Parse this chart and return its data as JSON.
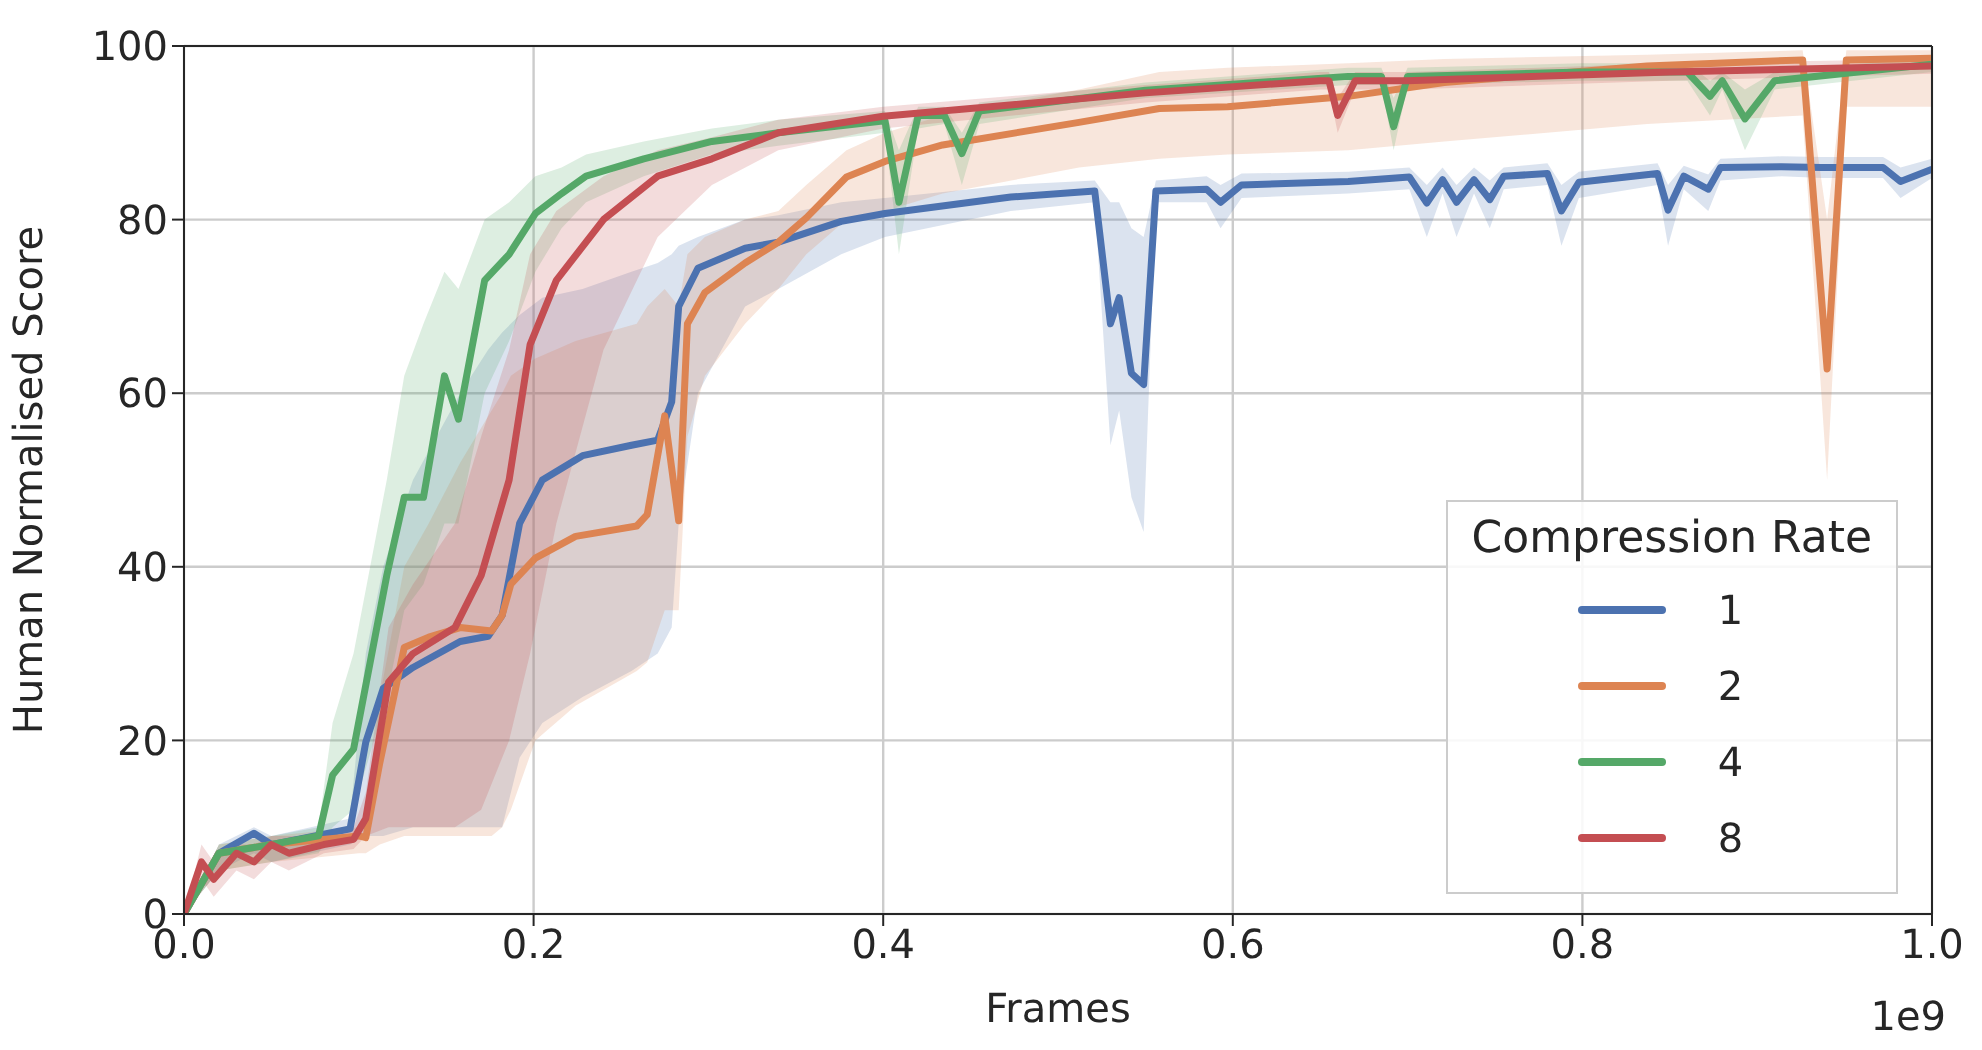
{
  "chart_data": {
    "type": "line",
    "xlabel": "Frames",
    "ylabel": "Human Normalised Score",
    "legend_title": "Compression Rate",
    "legend": "bottom right",
    "grid": true,
    "xlim": [
      0,
      1
    ],
    "ylim": [
      0,
      100
    ],
    "xticks": [
      {
        "value": 0,
        "label": "0.0"
      },
      {
        "value": 0.2,
        "label": "0.2"
      },
      {
        "value": 0.4,
        "label": "0.4"
      },
      {
        "value": 0.6,
        "label": "0.6"
      },
      {
        "value": 0.8,
        "label": "0.8"
      },
      {
        "value": 1,
        "label": "1.0"
      }
    ],
    "yticks": [
      0,
      20,
      40,
      60,
      80,
      100
    ],
    "annotations": [
      "1e9"
    ],
    "series": [
      {
        "name": "1",
        "color": "#4c72b0",
        "x": [
          0,
          0.02,
          0.04,
          0.05,
          0.095,
          0.104,
          0.114,
          0.131,
          0.158,
          0.174,
          0.182,
          0.192,
          0.205,
          0.228,
          0.256,
          0.271,
          0.279,
          0.283,
          0.294,
          0.321,
          0.34,
          0.376,
          0.401,
          0.473,
          0.521,
          0.53,
          0.535,
          0.542,
          0.549,
          0.556,
          0.585,
          0.593,
          0.605,
          0.666,
          0.701,
          0.711,
          0.72,
          0.728,
          0.738,
          0.747,
          0.755,
          0.78,
          0.788,
          0.798,
          0.843,
          0.849,
          0.858,
          0.872,
          0.879,
          0.914,
          0.937,
          0.972,
          0.982,
          1.0
        ],
        "values": [
          0,
          7,
          9.3,
          8,
          9.8,
          19.8,
          26,
          28.4,
          31.4,
          32,
          34.4,
          45,
          50,
          52.8,
          54,
          54.6,
          59,
          70,
          74.4,
          76.7,
          77.4,
          79.8,
          80.7,
          82.6,
          83.3,
          68,
          71,
          62.3,
          61,
          83.3,
          83.5,
          82,
          84,
          84.4,
          84.9,
          81.9,
          84.6,
          82,
          84.6,
          82.3,
          85,
          85.3,
          81,
          84.3,
          85.3,
          81.1,
          85,
          83.5,
          86,
          86.1,
          86,
          86,
          84.4,
          85.8
        ],
        "lower": [
          0,
          5,
          7,
          6,
          8,
          9,
          9,
          10,
          10,
          10,
          10,
          18,
          22,
          25,
          28,
          30,
          33,
          45,
          60,
          70,
          72,
          76,
          78,
          81,
          82,
          54,
          58,
          48,
          44,
          82,
          82,
          79,
          82.5,
          83,
          83.5,
          78,
          83,
          78,
          83,
          79,
          83.5,
          84,
          77,
          82.5,
          84,
          77,
          83.5,
          81,
          84.5,
          85,
          84.8,
          84.8,
          82.5,
          84.8
        ],
        "upper": [
          0,
          8,
          10,
          9,
          11,
          30,
          40,
          50,
          60,
          65,
          67,
          69,
          71,
          72,
          74,
          75,
          76,
          77,
          78,
          80,
          80.5,
          82,
          82.5,
          84,
          84.5,
          82,
          82,
          79,
          78,
          84.5,
          85,
          84,
          85.3,
          85.5,
          86,
          84,
          86,
          84,
          86,
          84.5,
          86,
          86.5,
          84,
          85.5,
          86.5,
          84,
          86.2,
          85.2,
          87,
          87.3,
          87.2,
          87.2,
          86,
          87
        ]
      },
      {
        "name": "2",
        "color": "#dd8452",
        "x": [
          0,
          0.02,
          0.05,
          0.1,
          0.104,
          0.112,
          0.126,
          0.14,
          0.158,
          0.176,
          0.182,
          0.187,
          0.201,
          0.224,
          0.259,
          0.265,
          0.275,
          0.283,
          0.288,
          0.298,
          0.321,
          0.34,
          0.356,
          0.379,
          0.401,
          0.434,
          0.512,
          0.558,
          0.597,
          0.666,
          0.721,
          0.837,
          0.926,
          0.94,
          0.951,
          1.0
        ],
        "values": [
          0,
          7,
          8,
          9,
          8.8,
          17.4,
          30.7,
          31.9,
          33,
          32.6,
          34.4,
          38,
          41,
          43.5,
          44.7,
          46,
          57.4,
          45.3,
          68,
          71.6,
          75,
          77.4,
          80.2,
          84.9,
          86.7,
          88.6,
          91.2,
          92.8,
          93,
          94.2,
          95.8,
          97.7,
          98.4,
          62.8,
          98.4,
          98.6
        ],
        "lower": [
          0,
          5,
          6,
          7,
          7,
          8,
          9,
          9,
          9,
          9,
          10,
          12,
          20,
          24,
          28,
          29,
          35,
          35,
          55,
          62,
          68,
          72,
          76,
          80,
          81,
          83,
          86,
          87,
          87.5,
          88,
          89,
          91,
          92,
          50,
          93,
          93
        ],
        "upper": [
          0,
          8,
          9,
          10,
          11,
          25,
          40,
          45,
          52,
          58,
          60,
          62,
          64,
          66,
          68,
          70,
          72,
          70,
          76,
          78,
          80,
          81,
          84,
          88,
          90,
          92,
          95,
          97,
          97.5,
          98,
          98.5,
          99,
          99.5,
          80,
          99.5,
          99.5
        ]
      },
      {
        "name": "4",
        "color": "#55a868",
        "x": [
          0,
          0.02,
          0.05,
          0.077,
          0.085,
          0.097,
          0.116,
          0.126,
          0.137,
          0.149,
          0.157,
          0.172,
          0.186,
          0.201,
          0.216,
          0.23,
          0.263,
          0.302,
          0.34,
          0.401,
          0.409,
          0.42,
          0.435,
          0.445,
          0.455,
          0.55,
          0.666,
          0.685,
          0.692,
          0.7,
          0.8,
          0.86,
          0.873,
          0.88,
          0.893,
          0.91,
          1.0
        ],
        "values": [
          0,
          7,
          8,
          9,
          16,
          19,
          39,
          48,
          48,
          62,
          57,
          73,
          76,
          80.7,
          83,
          85,
          87,
          89,
          90,
          91.4,
          82,
          92,
          92,
          87.6,
          92.5,
          94.9,
          96.5,
          96.5,
          90.7,
          96.5,
          97,
          97,
          94.2,
          96,
          91.6,
          96,
          97.9
        ],
        "lower": [
          0,
          5,
          6,
          7,
          10,
          12,
          25,
          35,
          38,
          45,
          45,
          60,
          66,
          74,
          79,
          82,
          85,
          87.5,
          88.5,
          90,
          76,
          90.5,
          91,
          84,
          91,
          94,
          95.5,
          95.5,
          88,
          95.5,
          96,
          96,
          92,
          95,
          88,
          95,
          97
        ],
        "upper": [
          0,
          8,
          9,
          10,
          22,
          30,
          50,
          62,
          68,
          74,
          72,
          80,
          82,
          85,
          86,
          87.5,
          89,
          90.5,
          91.5,
          92.5,
          88,
          93,
          93,
          90,
          93.5,
          95.8,
          97.5,
          97.5,
          94,
          97.5,
          98,
          98,
          96,
          97,
          95,
          97,
          98.8
        ]
      },
      {
        "name": "8",
        "color": "#c44e52",
        "x": [
          0,
          0.01,
          0.017,
          0.03,
          0.04,
          0.05,
          0.06,
          0.08,
          0.097,
          0.104,
          0.117,
          0.131,
          0.155,
          0.17,
          0.186,
          0.198,
          0.213,
          0.24,
          0.271,
          0.302,
          0.34,
          0.4,
          0.55,
          0.65,
          0.655,
          0.66,
          0.67,
          0.7,
          0.85,
          1.0
        ],
        "values": [
          0,
          6,
          4,
          7,
          6,
          8,
          7,
          8,
          8.6,
          11,
          26.7,
          30,
          33,
          39,
          50,
          65.6,
          73,
          80,
          85,
          87,
          90,
          91.9,
          94.6,
          96,
          96,
          92,
          96,
          96,
          97,
          97.7
        ],
        "lower": [
          0,
          4,
          2,
          5,
          4,
          6,
          5,
          7,
          7.5,
          9,
          10,
          10,
          10,
          12,
          20,
          30,
          45,
          65,
          78,
          84,
          88,
          90.5,
          93.5,
          95,
          95,
          90,
          95,
          95,
          96,
          96.8
        ],
        "upper": [
          0,
          8,
          6,
          8,
          8,
          9,
          9,
          9,
          10,
          14,
          33,
          38,
          45,
          55,
          65,
          76,
          81,
          85,
          88,
          89.5,
          91.5,
          93,
          95.5,
          97,
          97,
          94,
          97,
          97,
          98,
          98.5
        ]
      }
    ]
  }
}
